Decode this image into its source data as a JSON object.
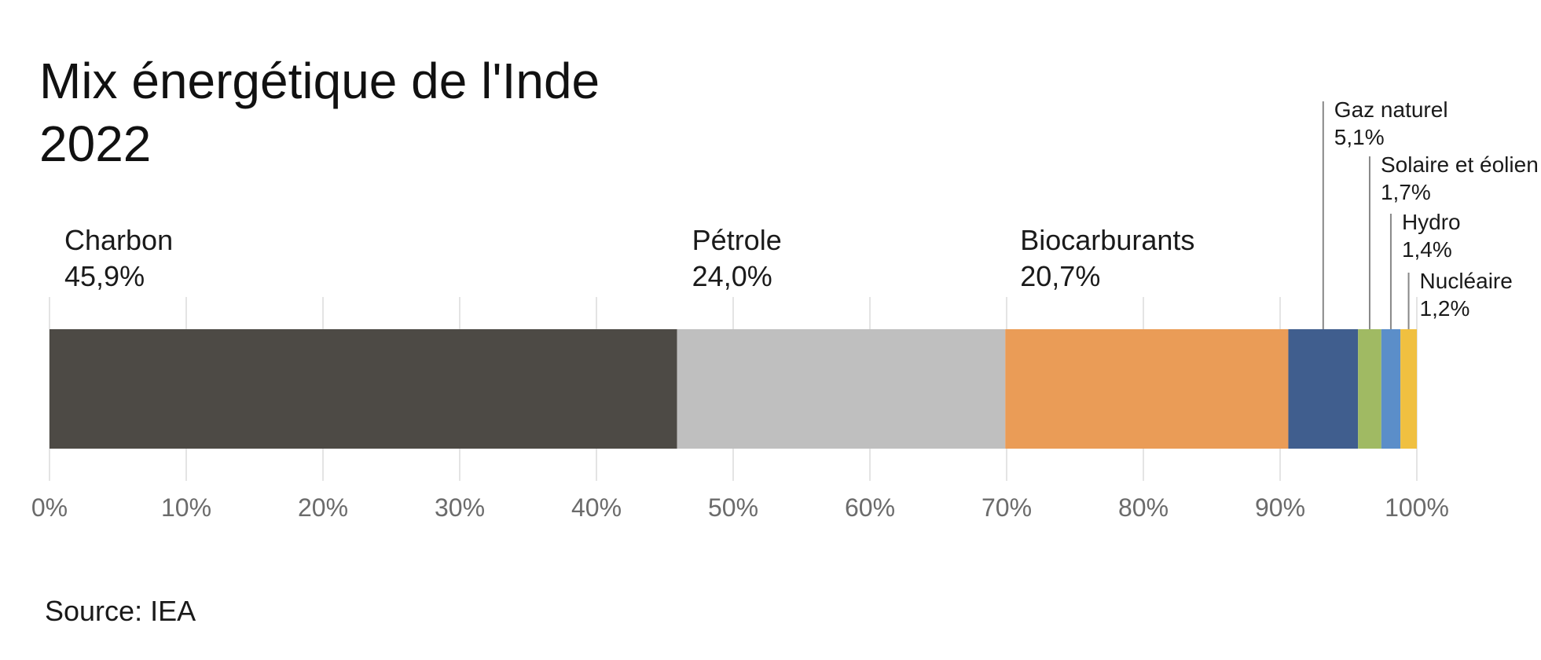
{
  "chart_data": {
    "type": "bar",
    "orientation": "horizontal-stacked",
    "title_line1": "Mix énergétique de l'Inde",
    "title_line2": "2022",
    "source": "Source: IEA",
    "xlim": [
      0,
      100
    ],
    "grid": true,
    "ticks": [
      "0%",
      "10%",
      "20%",
      "30%",
      "40%",
      "50%",
      "60%",
      "70%",
      "80%",
      "90%",
      "100%"
    ],
    "series": [
      {
        "name": "Charbon",
        "value": 45.9,
        "value_label": "45,9%",
        "color": "#4d4a45"
      },
      {
        "name": "Pétrole",
        "value": 24.0,
        "value_label": "24,0%",
        "color": "#bfbfbf"
      },
      {
        "name": "Biocarburants",
        "value": 20.7,
        "value_label": "20,7%",
        "color": "#ea9c57"
      },
      {
        "name": "Gaz naturel",
        "value": 5.1,
        "value_label": "5,1%",
        "color": "#405e8e"
      },
      {
        "name": "Solaire et éolien",
        "value": 1.7,
        "value_label": "1,7%",
        "color": "#a0ba63"
      },
      {
        "name": "Hydro",
        "value": 1.4,
        "value_label": "1,4%",
        "color": "#5b8ec9"
      },
      {
        "name": "Nucléaire",
        "value": 1.2,
        "value_label": "1,2%",
        "color": "#f0c040"
      }
    ]
  }
}
